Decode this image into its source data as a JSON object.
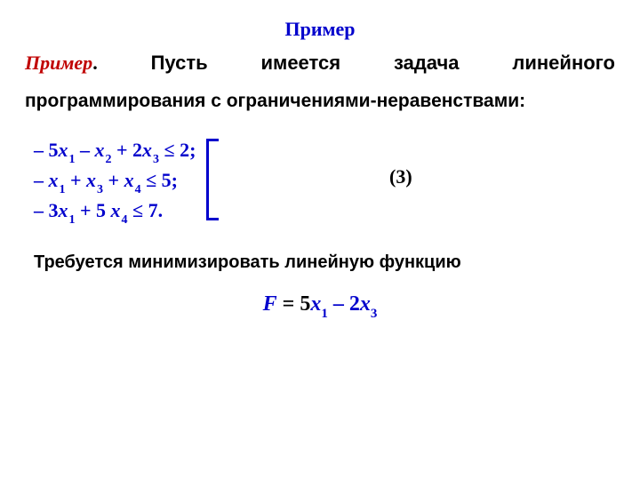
{
  "title": "Пример",
  "intro": {
    "primer": "Пример",
    "dot": ".",
    "words": [
      "Пусть",
      "имеется",
      "задача",
      "линейного"
    ]
  },
  "body_line": "программирования с ограничениями-неравенствами:",
  "constraints": {
    "rows": [
      {
        "parts": [
          "– 5",
          "x",
          "1",
          " – ",
          "x",
          "2",
          " + 2",
          "x",
          "3",
          " ≤ 2;"
        ]
      },
      {
        "parts": [
          "–  ",
          "x",
          "1",
          " +  ",
          "x",
          "3",
          " +  ",
          "x",
          "4",
          " ≤ 5;"
        ]
      },
      {
        "parts": [
          "– 3",
          "x",
          "1",
          " + 5 ",
          "x",
          "4",
          " ≤ 7."
        ]
      }
    ],
    "label": "(3)"
  },
  "requirement": "Требуется минимизировать линейную функцию",
  "objective": {
    "F": "F",
    "eq": "  = 5",
    "x1": "x",
    "s1": "1",
    "minus": " –  2",
    "x3": "x",
    "s3": "3"
  },
  "colors": {
    "accent": "#0000cc",
    "primer": "#c00000",
    "text": "#000000",
    "bg": "#ffffff"
  }
}
